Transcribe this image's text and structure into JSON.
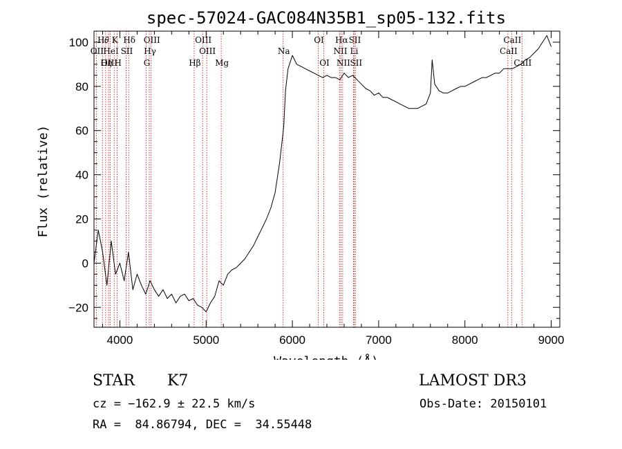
{
  "chart_data": {
    "type": "line",
    "title": "spec-57024-GAC084N35B1_sp05-132.fits",
    "xlabel": "Wavelength (Å)",
    "ylabel": "Flux (relative)",
    "xlim": [
      3700,
      9100
    ],
    "ylim": [
      -29,
      105
    ],
    "x_ticks": [
      4000,
      5000,
      6000,
      7000,
      8000,
      9000
    ],
    "y_ticks": [
      -20,
      0,
      20,
      40,
      60,
      80,
      100
    ],
    "grid": false,
    "series": [
      {
        "x": [
          3700,
          3750,
          3800,
          3850,
          3900,
          3950,
          4000,
          4050,
          4100,
          4150,
          4200,
          4250,
          4300,
          4350,
          4400,
          4450,
          4500,
          4550,
          4600,
          4650,
          4700,
          4750,
          4800,
          4850,
          4900,
          4950,
          5000,
          5050,
          5100,
          5150,
          5200,
          5250,
          5300,
          5350,
          5400,
          5450,
          5500,
          5550,
          5600,
          5650,
          5700,
          5750,
          5800,
          5850,
          5880,
          5900,
          5920,
          5950,
          6000,
          6050,
          6100,
          6150,
          6200,
          6250,
          6300,
          6350,
          6400,
          6450,
          6500,
          6550,
          6600,
          6650,
          6700,
          6750,
          6800,
          6850,
          6900,
          6950,
          7000,
          7050,
          7100,
          7150,
          7200,
          7250,
          7300,
          7350,
          7400,
          7450,
          7500,
          7550,
          7600,
          7620,
          7650,
          7700,
          7750,
          7800,
          7850,
          7900,
          7950,
          8000,
          8050,
          8100,
          8150,
          8200,
          8250,
          8300,
          8350,
          8400,
          8450,
          8500,
          8550,
          8600,
          8650,
          8700,
          8750,
          8800,
          8850,
          8900,
          8950,
          9000
        ],
        "y": [
          0,
          15,
          5,
          -10,
          10,
          -5,
          0,
          -8,
          5,
          -12,
          -5,
          -10,
          -14,
          -8,
          -12,
          -15,
          -12,
          -16,
          -14,
          -18,
          -15,
          -14,
          -17,
          -16,
          -19,
          -20,
          -22,
          -18,
          -15,
          -8,
          -10,
          -5,
          -3,
          -2,
          0,
          2,
          5,
          8,
          12,
          16,
          20,
          25,
          32,
          45,
          55,
          62,
          78,
          88,
          94,
          90,
          89,
          88,
          87,
          86,
          85,
          84,
          85,
          84,
          84,
          83,
          86,
          84,
          85,
          83,
          81,
          79,
          78,
          76,
          77,
          75,
          75,
          74,
          73,
          72,
          71,
          70,
          70,
          70,
          71,
          72,
          77,
          92,
          81,
          78,
          77,
          77,
          78,
          79,
          80,
          80,
          81,
          82,
          83,
          84,
          84,
          85,
          86,
          86,
          88,
          88,
          88,
          89,
          90,
          92,
          93,
          95,
          97,
          100,
          103,
          98
        ]
      }
    ],
    "line_markers": [
      {
        "label": "H𝜃",
        "x": 3798,
        "row": 1
      },
      {
        "label": "OII",
        "x": 3727,
        "row": 2
      },
      {
        "label": "OIII",
        "x": 3869,
        "row": 3
      },
      {
        "label": "K",
        "x": 3934,
        "row": 1
      },
      {
        "label": "HeI",
        "x": 3889,
        "row": 2
      },
      {
        "label": "H𝜂",
        "x": 3835,
        "row": 3
      },
      {
        "label": "H",
        "x": 3969,
        "row": 3
      },
      {
        "label": "Hδ",
        "x": 4102,
        "row": 1
      },
      {
        "label": "SII",
        "x": 4072,
        "row": 2
      },
      {
        "label": "OIII",
        "x": 4363,
        "row": 1
      },
      {
        "label": "Hγ",
        "x": 4341,
        "row": 2
      },
      {
        "label": "G",
        "x": 4305,
        "row": 3
      },
      {
        "label": "OIII",
        "x": 4959,
        "row": 1
      },
      {
        "label": "OIII",
        "x": 5007,
        "row": 2
      },
      {
        "label": "Hβ",
        "x": 4861,
        "row": 3
      },
      {
        "label": "Mg",
        "x": 5175,
        "row": 3
      },
      {
        "label": "Na",
        "x": 5893,
        "row": 2
      },
      {
        "label": "OI",
        "x": 6300,
        "row": 1
      },
      {
        "label": "OI",
        "x": 6364,
        "row": 3
      },
      {
        "label": "Hα",
        "x": 6563,
        "row": 1
      },
      {
        "label": "SII",
        "x": 6716,
        "row": 1
      },
      {
        "label": "NII",
        "x": 6548,
        "row": 2
      },
      {
        "label": "Li",
        "x": 6708,
        "row": 2
      },
      {
        "label": "NII",
        "x": 6583,
        "row": 3
      },
      {
        "label": "SII",
        "x": 6731,
        "row": 3
      },
      {
        "label": "CaII",
        "x": 8542,
        "row": 1
      },
      {
        "label": "CaII",
        "x": 8498,
        "row": 2
      },
      {
        "label": "CaII",
        "x": 8662,
        "row": 3
      }
    ]
  },
  "info": {
    "class": "STAR",
    "subclass": "K7",
    "survey": "LAMOST DR3",
    "cz": "cz = −162.9 ± 22.5 km/s",
    "obs_date": "Obs-Date: 20150101",
    "coords": "RA =  84.86794, DEC =  34.55448"
  },
  "colors": {
    "spectrum": "#000000",
    "line_markers": "#cc0000",
    "axes": "#000000"
  }
}
